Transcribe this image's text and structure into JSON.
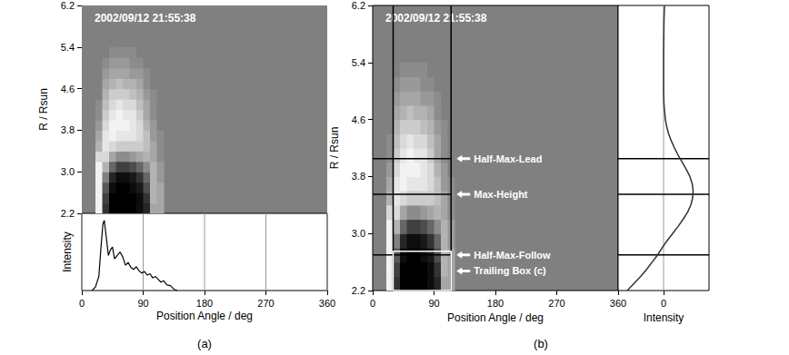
{
  "chart_data": [
    {
      "type": "heatmap",
      "label": "(a)",
      "annotation": "2002/09/12 21:55:38",
      "y_label": "R / Rsun",
      "xlim": [
        0,
        360
      ],
      "xticks": [
        0,
        90,
        180,
        270,
        360
      ],
      "ylim": [
        2.2,
        6.2
      ],
      "yticks": [
        2.2,
        {
          "value": 3,
          "label": "3.0"
        },
        3.8,
        4.6,
        5.4,
        6.2
      ],
      "tick_labels": "y",
      "color_range": [
        -1,
        1
      ],
      "cells": {
        "x": [
          25,
          35,
          45,
          55,
          65,
          75,
          85,
          95,
          105,
          115
        ],
        "y": [
          2.3,
          2.5,
          2.7,
          2.9,
          3.1,
          3.3,
          3.5,
          3.7,
          3.9,
          4.1,
          4.3,
          4.5,
          4.7,
          4.9,
          5.1,
          5.3
        ],
        "values": [
          [
            0.9,
            -0.6,
            -1,
            -1,
            -1,
            -1,
            -0.9,
            -0.7,
            0.3,
            0.3
          ],
          [
            0.9,
            -0.5,
            -1,
            -1,
            -1,
            -1,
            -0.9,
            -0.6,
            0.4,
            0.3
          ],
          [
            0.9,
            -0.3,
            -0.9,
            -1,
            -1,
            -0.9,
            -0.8,
            -0.4,
            0.4,
            0.3
          ],
          [
            0.9,
            0.0,
            -0.7,
            -0.9,
            -0.9,
            -0.8,
            -0.6,
            -0.2,
            0.4,
            0.2
          ],
          [
            0.9,
            0.4,
            -0.2,
            -0.5,
            -0.5,
            -0.4,
            -0.2,
            0.1,
            0.4,
            0.2
          ],
          [
            0.7,
            0.7,
            0.3,
            0.1,
            0.1,
            0.2,
            0.3,
            0.4,
            0.3,
            0.1
          ],
          [
            0.4,
            0.8,
            0.7,
            0.6,
            0.6,
            0.6,
            0.6,
            0.5,
            0.3,
            0.1
          ],
          [
            0.3,
            0.8,
            0.9,
            0.8,
            0.8,
            0.8,
            0.7,
            0.5,
            0.2,
            0.1
          ],
          [
            0.2,
            0.7,
            0.9,
            0.9,
            0.9,
            0.8,
            0.7,
            0.4,
            0.2,
            0
          ],
          [
            0.1,
            0.6,
            0.8,
            0.9,
            0.8,
            0.8,
            0.6,
            0.3,
            0.1,
            0
          ],
          [
            0.1,
            0.5,
            0.7,
            0.8,
            0.7,
            0.7,
            0.5,
            0.3,
            0.1,
            0
          ],
          [
            0,
            0.4,
            0.6,
            0.6,
            0.6,
            0.5,
            0.4,
            0.2,
            0.1,
            0
          ],
          [
            0,
            0.3,
            0.4,
            0.5,
            0.4,
            0.4,
            0.3,
            0.1,
            0,
            0
          ],
          [
            0,
            0.2,
            0.3,
            0.3,
            0.3,
            0.2,
            0.2,
            0.1,
            0,
            0
          ],
          [
            0,
            0.1,
            0.2,
            0.2,
            0.2,
            0.1,
            0.1,
            0,
            0,
            0
          ],
          [
            0,
            0,
            0.1,
            0.1,
            0.1,
            0.1,
            0,
            0,
            0,
            0
          ]
        ]
      }
    },
    {
      "type": "line",
      "x_label": "Position Angle / deg",
      "y_label": "Intensity",
      "xlim": [
        0,
        360
      ],
      "xticks": [
        0,
        90,
        180,
        270,
        360
      ],
      "ylim": [
        0,
        1.1
      ],
      "yticks": [],
      "grid": true,
      "tick_labels": "x",
      "color": "#000000",
      "x": [
        15,
        20,
        25,
        28,
        31,
        33,
        36,
        39,
        42,
        45,
        48,
        52,
        56,
        60,
        64,
        68,
        72,
        76,
        80,
        84,
        88,
        92,
        96,
        100,
        104,
        108,
        112,
        116,
        120,
        125,
        130,
        135,
        140
      ],
      "values": [
        0,
        0.05,
        0.2,
        0.6,
        0.95,
        1.0,
        0.75,
        0.5,
        0.58,
        0.62,
        0.45,
        0.5,
        0.55,
        0.48,
        0.36,
        0.4,
        0.33,
        0.3,
        0.34,
        0.28,
        0.25,
        0.27,
        0.22,
        0.24,
        0.18,
        0.2,
        0.16,
        0.12,
        0.14,
        0.08,
        0.07,
        0.02,
        0
      ]
    },
    {
      "type": "heatmap",
      "label": "(b)",
      "annotation": "2002/09/12 21:55:38",
      "x_label": "Position Angle / deg",
      "y_label": "R / Rsun",
      "xlim": [
        0,
        360
      ],
      "xticks": [
        0,
        90,
        180,
        270,
        360
      ],
      "ylim": [
        2.2,
        6.2
      ],
      "yticks": [
        2.2,
        {
          "value": 3,
          "label": "3.0"
        },
        3.8,
        4.6,
        5.4,
        6.2
      ],
      "color_range": [
        -1,
        1
      ],
      "bounds": [
        30,
        115
      ],
      "markers": [
        {
          "label": "Half-Max-Lead",
          "r": 4.05
        },
        {
          "label": "Max-Height",
          "r": 3.55
        },
        {
          "label": "Half-Max-Follow",
          "r": 2.7
        }
      ],
      "box": {
        "label": "Trailing Box (c)",
        "x": [
          30,
          115
        ],
        "y": [
          2.2,
          2.75
        ]
      },
      "cells": {
        "x": [
          25,
          35,
          45,
          55,
          65,
          75,
          85,
          95,
          105,
          115
        ],
        "y": [
          2.3,
          2.5,
          2.7,
          2.9,
          3.1,
          3.3,
          3.5,
          3.7,
          3.9,
          4.1,
          4.3,
          4.5,
          4.7,
          4.9,
          5.1,
          5.3
        ],
        "values": [
          [
            0.9,
            -0.6,
            -1,
            -1,
            -1,
            -1,
            -0.9,
            -0.7,
            0.3,
            0.3
          ],
          [
            0.9,
            -0.5,
            -1,
            -1,
            -1,
            -1,
            -0.9,
            -0.6,
            0.4,
            0.3
          ],
          [
            0.9,
            -0.3,
            -0.9,
            -1,
            -1,
            -0.9,
            -0.8,
            -0.4,
            0.4,
            0.3
          ],
          [
            0.9,
            0.0,
            -0.7,
            -0.9,
            -0.9,
            -0.8,
            -0.6,
            -0.2,
            0.4,
            0.2
          ],
          [
            0.9,
            0.4,
            -0.2,
            -0.5,
            -0.5,
            -0.4,
            -0.2,
            0.1,
            0.4,
            0.2
          ],
          [
            0.7,
            0.7,
            0.3,
            0.1,
            0.1,
            0.2,
            0.3,
            0.4,
            0.3,
            0.1
          ],
          [
            0.4,
            0.8,
            0.7,
            0.6,
            0.6,
            0.6,
            0.6,
            0.5,
            0.3,
            0.1
          ],
          [
            0.3,
            0.8,
            0.9,
            0.8,
            0.8,
            0.8,
            0.7,
            0.5,
            0.2,
            0.1
          ],
          [
            0.2,
            0.7,
            0.9,
            0.9,
            0.9,
            0.8,
            0.7,
            0.4,
            0.2,
            0
          ],
          [
            0.1,
            0.6,
            0.8,
            0.9,
            0.8,
            0.8,
            0.6,
            0.3,
            0.1,
            0
          ],
          [
            0.1,
            0.5,
            0.7,
            0.8,
            0.7,
            0.7,
            0.5,
            0.3,
            0.1,
            0
          ],
          [
            0,
            0.4,
            0.6,
            0.6,
            0.6,
            0.5,
            0.4,
            0.2,
            0.1,
            0
          ],
          [
            0,
            0.3,
            0.4,
            0.5,
            0.4,
            0.4,
            0.3,
            0.1,
            0,
            0
          ],
          [
            0,
            0.2,
            0.3,
            0.3,
            0.3,
            0.2,
            0.2,
            0.1,
            0,
            0
          ],
          [
            0,
            0.1,
            0.2,
            0.2,
            0.2,
            0.1,
            0.1,
            0,
            0,
            0
          ],
          [
            0,
            0,
            0.1,
            0.1,
            0.1,
            0.1,
            0,
            0,
            0,
            0
          ]
        ]
      }
    },
    {
      "type": "line",
      "x_label": "Intensity",
      "xlim": [
        -1,
        1
      ],
      "xticks": [
        0
      ],
      "ylim": [
        2.2,
        6.2
      ],
      "yticks": [],
      "grid": true,
      "tick_labels": "x",
      "color": "#333333",
      "levels": [
        4.05,
        3.55,
        2.7
      ],
      "x": [
        -0.8,
        -0.65,
        -0.5,
        -0.37,
        -0.25,
        -0.13,
        -0.03,
        0.08,
        0.2,
        0.32,
        0.43,
        0.53,
        0.6,
        0.64,
        0.65,
        0.63,
        0.58,
        0.5,
        0.41,
        0.32,
        0.24,
        0.17,
        0.11,
        0.07,
        0.04,
        0.01,
        0,
        0,
        0.01,
        0.02
      ],
      "y": [
        2.2,
        2.3,
        2.4,
        2.5,
        2.6,
        2.7,
        2.8,
        2.9,
        3.0,
        3.1,
        3.2,
        3.3,
        3.4,
        3.5,
        3.6,
        3.7,
        3.8,
        3.9,
        4.0,
        4.1,
        4.2,
        4.3,
        4.4,
        4.5,
        4.6,
        4.8,
        5.0,
        5.5,
        6.0,
        6.2
      ]
    }
  ]
}
